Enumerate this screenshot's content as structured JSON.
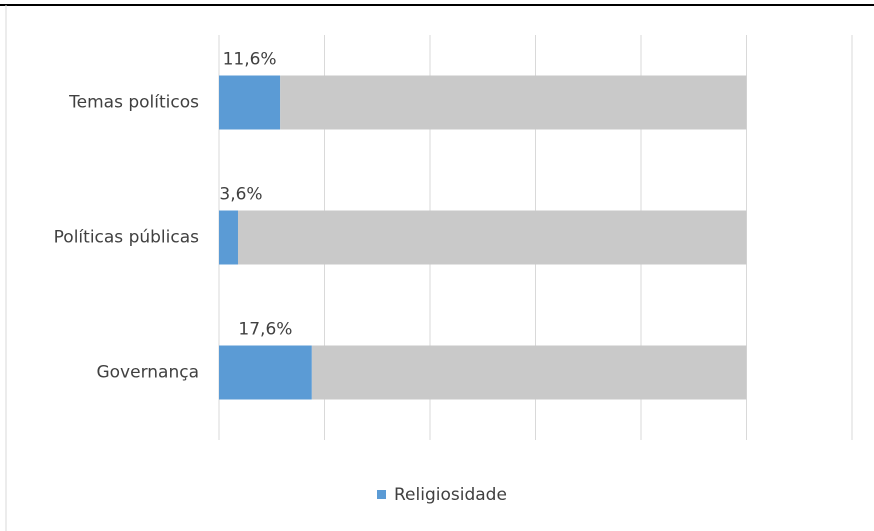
{
  "chart_data": {
    "type": "stacked_barh",
    "categories": [
      "Temas políticos",
      "Políticas públicas",
      "Governança"
    ],
    "series": [
      {
        "name": "Religiosidade",
        "color": "#5b9bd5",
        "values": [
          11.6,
          3.6,
          17.6
        ],
        "value_labels": [
          "11,6%",
          "3,6%",
          "17,6%"
        ]
      },
      {
        "color": "#c9c9c9",
        "values": [
          88.4,
          96.4,
          82.4
        ]
      }
    ],
    "xlim": [
      0,
      120
    ],
    "xticks": [
      0,
      20,
      40,
      60,
      80,
      100,
      120
    ],
    "grid": true,
    "legend": "bottom"
  }
}
